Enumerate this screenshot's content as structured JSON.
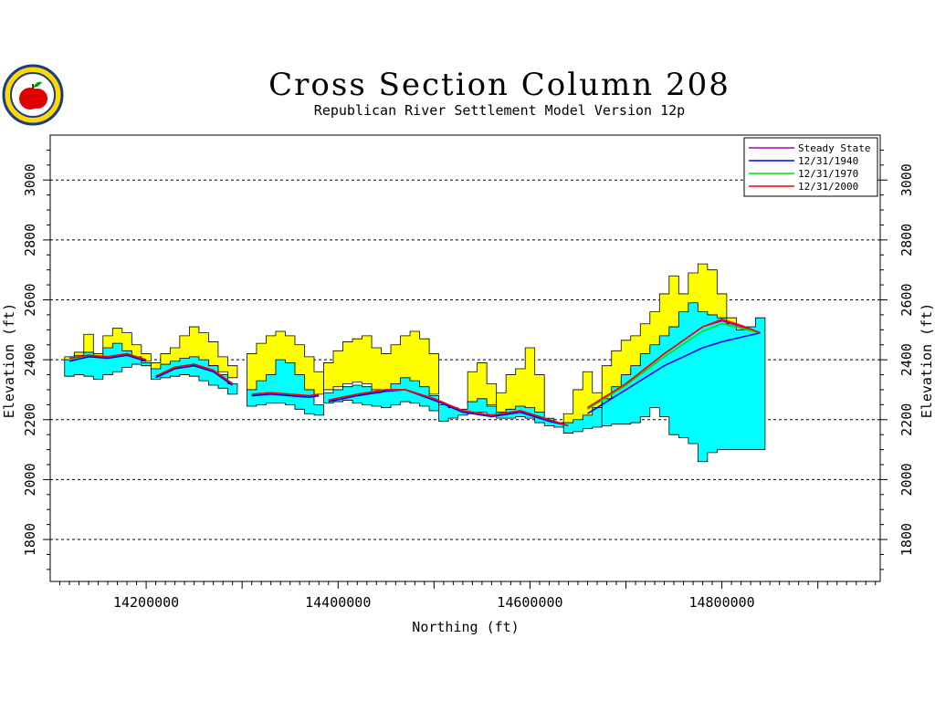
{
  "chart_data": {
    "type": "area",
    "title": "Cross Section Column 208",
    "subtitle": "Republican River Settlement Model Version 12p",
    "xlabel": "Northing (ft)",
    "ylabel": "Elevation (ft)",
    "xlim": [
      14100000,
      14965000
    ],
    "ylim": [
      1660000,
      3150000
    ],
    "y_scale_note": "",
    "xticks": [
      14200000,
      14400000,
      14600000,
      14800000
    ],
    "xtick_labels": [
      "14200000",
      "14400000",
      "14600000",
      "14800000"
    ],
    "yticks": [
      1800,
      2000,
      2200,
      2400,
      2600,
      2800,
      3000
    ],
    "ytick_labels": [
      "1800",
      "2000",
      "2200",
      "2400",
      "2600",
      "2800",
      "3000"
    ],
    "grid": "horizontal dashed",
    "legend_position": "top-right",
    "colors": {
      "yellow_layer": "#ffff00",
      "cyan_layer": "#00ffff",
      "steady_state": "#b000b0",
      "y1940": "#0000ff",
      "y1970": "#00e000",
      "y2000": "#ff0000"
    },
    "layers": [
      {
        "name": "",
        "color": "#ffff00",
        "segments": [
          {
            "x": [
              14120000,
              14130000,
              14140000,
              14150000,
              14160000,
              14170000,
              14180000,
              14190000,
              14200000
            ],
            "top": [
              2410,
              2425,
              2485,
              2420,
              2480,
              2505,
              2490,
              2450,
              2420
            ],
            "bottom": [
              2400,
              2410,
              2415,
              2405,
              2410,
              2420,
              2415,
              2405,
              2395
            ]
          },
          {
            "x": [
              14210000,
              14220000,
              14230000,
              14240000,
              14250000,
              14260000,
              14270000,
              14280000,
              14290000
            ],
            "top": [
              2390,
              2420,
              2440,
              2480,
              2510,
              2490,
              2460,
              2410,
              2380
            ],
            "bottom": [
              2365,
              2375,
              2385,
              2395,
              2400,
              2395,
              2380,
              2360,
              2340
            ]
          },
          {
            "x": [
              14310000,
              14320000,
              14330000,
              14340000,
              14350000,
              14360000,
              14370000,
              14380000
            ],
            "top": [
              2420,
              2455,
              2480,
              2495,
              2480,
              2450,
              2410,
              2360
            ],
            "bottom": [
              2290,
              2305,
              2315,
              2325,
              2325,
              2315,
              2300,
              2285
            ]
          },
          {
            "x": [
              14390000,
              14400000,
              14410000,
              14420000,
              14430000,
              14440000,
              14450000,
              14460000,
              14470000,
              14480000,
              14490000,
              14500000
            ],
            "top": [
              2390,
              2430,
              2460,
              2470,
              2480,
              2440,
              2420,
              2450,
              2480,
              2495,
              2470,
              2420
            ],
            "bottom": [
              2300,
              2310,
              2320,
              2325,
              2320,
              2300,
              2290,
              2295,
              2300,
              2305,
              2300,
              2285
            ]
          },
          {
            "x": [
              14540000,
              14550000,
              14560000
            ],
            "top": [
              2360,
              2390,
              2320
            ],
            "bottom": [
              2250,
              2260,
              2250
            ]
          },
          {
            "x": [
              14570000,
              14580000,
              14590000,
              14600000,
              14610000
            ],
            "top": [
              2290,
              2350,
              2370,
              2440,
              2350
            ],
            "bottom": [
              2225,
              2230,
              2235,
              2225,
              2210
            ]
          },
          {
            "x": [
              14640000,
              14650000,
              14660000,
              14670000
            ],
            "top": [
              2220,
              2300,
              2360,
              2290
            ],
            "bottom": [
              2185,
              2195,
              2205,
              2215
            ]
          },
          {
            "x": [
              14680000,
              14690000,
              14700000,
              14710000,
              14720000,
              14730000,
              14740000,
              14750000,
              14760000,
              14770000,
              14780000,
              14790000,
              14800000,
              14810000
            ],
            "top": [
              2380,
              2430,
              2465,
              2480,
              2520,
              2560,
              2620,
              2680,
              2620,
              2690,
              2720,
              2700,
              2620,
              2540
            ],
            "bottom": [
              2240,
              2290,
              2330,
              2370,
              2410,
              2440,
              2470,
              2490,
              2500,
              2510,
              2520,
              2530,
              2520,
              2500
            ]
          }
        ]
      },
      {
        "name": "",
        "color": "#00ffff",
        "segments": [
          {
            "x": [
              14120000,
              14130000,
              14140000,
              14150000,
              14160000,
              14170000,
              14180000,
              14190000,
              14200000
            ],
            "top": [
              2400,
              2415,
              2425,
              2410,
              2440,
              2455,
              2430,
              2410,
              2390
            ],
            "bottom": [
              2345,
              2350,
              2345,
              2335,
              2350,
              2360,
              2375,
              2385,
              2380
            ]
          },
          {
            "x": [
              14210000,
              14220000,
              14230000,
              14240000,
              14250000,
              14260000,
              14270000,
              14280000,
              14290000
            ],
            "top": [
              2370,
              2385,
              2395,
              2405,
              2410,
              2400,
              2380,
              2350,
              2320
            ],
            "bottom": [
              2335,
              2340,
              2345,
              2350,
              2345,
              2330,
              2315,
              2305,
              2285
            ]
          },
          {
            "x": [
              14310000,
              14320000,
              14330000,
              14340000,
              14350000,
              14360000,
              14370000,
              14380000
            ],
            "top": [
              2300,
              2330,
              2350,
              2400,
              2390,
              2350,
              2300,
              2250
            ],
            "bottom": [
              2245,
              2250,
              2255,
              2255,
              2250,
              2235,
              2220,
              2215
            ]
          },
          {
            "x": [
              14390000,
              14400000,
              14410000,
              14420000,
              14430000,
              14440000,
              14450000,
              14460000,
              14470000,
              14480000,
              14490000,
              14500000
            ],
            "top": [
              2290,
              2300,
              2310,
              2315,
              2310,
              2290,
              2300,
              2320,
              2340,
              2330,
              2310,
              2280
            ],
            "bottom": [
              2255,
              2260,
              2265,
              2255,
              2250,
              2245,
              2240,
              2250,
              2260,
              2255,
              2245,
              2230
            ]
          },
          {
            "x": [
              14510000,
              14520000,
              14530000,
              14540000,
              14550000,
              14560000
            ],
            "top": [
              2250,
              2240,
              2235,
              2260,
              2270,
              2245
            ],
            "bottom": [
              2195,
              2205,
              2215,
              2220,
              2225,
              2215
            ]
          },
          {
            "x": [
              14570000,
              14580000,
              14590000,
              14600000,
              14610000,
              14620000,
              14630000
            ],
            "top": [
              2225,
              2235,
              2245,
              2240,
              2225,
              2205,
              2190
            ],
            "bottom": [
              2205,
              2205,
              2210,
              2205,
              2190,
              2180,
              2175
            ]
          },
          {
            "x": [
              14640000,
              14650000,
              14660000,
              14670000
            ],
            "top": [
              2190,
              2200,
              2215,
              2240
            ],
            "bottom": [
              2155,
              2160,
              2170,
              2175
            ]
          },
          {
            "x": [
              14680000,
              14690000,
              14700000,
              14710000,
              14720000,
              14730000,
              14740000,
              14750000,
              14760000,
              14770000,
              14780000,
              14790000,
              14800000,
              14810000,
              14820000,
              14830000,
              14840000
            ],
            "top": [
              2270,
              2310,
              2350,
              2380,
              2420,
              2450,
              2480,
              2510,
              2560,
              2590,
              2560,
              2550,
              2540,
              2520,
              2500,
              2510,
              2540
            ],
            "bottom": [
              2180,
              2185,
              2185,
              2190,
              2210,
              2240,
              2210,
              2150,
              2140,
              2120,
              2060,
              2090,
              2100,
              2100,
              2100,
              2100,
              2100
            ]
          }
        ]
      }
    ],
    "series": [
      {
        "name": "Steady State",
        "color": "#b000b0",
        "segments": [
          {
            "x": [
              14120000,
              14140000,
              14160000,
              14180000,
              14200000
            ],
            "y": [
              2405,
              2415,
              2410,
              2420,
              2400
            ]
          },
          {
            "x": [
              14210000,
              14230000,
              14250000,
              14270000,
              14290000
            ],
            "y": [
              2345,
              2375,
              2385,
              2365,
              2320
            ]
          },
          {
            "x": [
              14310000,
              14330000,
              14350000,
              14370000,
              14380000
            ],
            "y": [
              2285,
              2290,
              2285,
              2280,
              2285
            ]
          },
          {
            "x": [
              14390000,
              14420000,
              14450000,
              14470000,
              14500000,
              14530000,
              14560000,
              14590000,
              14620000,
              14640000
            ],
            "y": [
              2265,
              2285,
              2300,
              2300,
              2270,
              2230,
              2215,
              2230,
              2200,
              2180
            ]
          },
          {
            "x": [
              14660000,
              14700000,
              14740000,
              14780000,
              14800000,
              14820000,
              14840000
            ],
            "y": [
              2240,
              2320,
              2420,
              2510,
              2530,
              2510,
              2490
            ]
          }
        ]
      },
      {
        "name": "12/31/1940",
        "color": "#0000ff",
        "segments": [
          {
            "x": [
              14120000,
              14140000,
              14160000,
              14180000,
              14200000
            ],
            "y": [
              2395,
              2410,
              2405,
              2415,
              2395
            ]
          },
          {
            "x": [
              14210000,
              14230000,
              14250000,
              14270000,
              14290000
            ],
            "y": [
              2340,
              2370,
              2380,
              2360,
              2315
            ]
          },
          {
            "x": [
              14310000,
              14330000,
              14350000,
              14370000,
              14380000
            ],
            "y": [
              2280,
              2285,
              2280,
              2275,
              2280
            ]
          },
          {
            "x": [
              14390000,
              14420000,
              14450000,
              14470000,
              14500000,
              14530000,
              14560000,
              14590000,
              14620000,
              14640000
            ],
            "y": [
              2260,
              2280,
              2295,
              2300,
              2265,
              2225,
              2210,
              2225,
              2195,
              2180
            ]
          },
          {
            "x": [
              14660000,
              14700000,
              14740000,
              14780000,
              14800000,
              14820000,
              14840000
            ],
            "y": [
              2220,
              2300,
              2380,
              2440,
              2460,
              2475,
              2490
            ]
          }
        ]
      },
      {
        "name": "12/31/1970",
        "color": "#00e000",
        "segments": [
          {
            "x": [
              14120000,
              14140000,
              14160000,
              14180000,
              14200000
            ],
            "y": [
              2400,
              2415,
              2410,
              2420,
              2400
            ]
          },
          {
            "x": [
              14210000,
              14230000,
              14250000,
              14270000,
              14290000
            ],
            "y": [
              2345,
              2375,
              2385,
              2365,
              2320
            ]
          },
          {
            "x": [
              14310000,
              14330000,
              14350000,
              14370000,
              14380000
            ],
            "y": [
              2285,
              2290,
              2285,
              2280,
              2285
            ]
          },
          {
            "x": [
              14390000,
              14420000,
              14450000,
              14470000,
              14500000,
              14530000,
              14560000,
              14590000,
              14620000,
              14640000
            ],
            "y": [
              2265,
              2285,
              2300,
              2300,
              2270,
              2230,
              2215,
              2230,
              2200,
              2180
            ]
          },
          {
            "x": [
              14660000,
              14700000,
              14740000,
              14780000,
              14800000,
              14820000,
              14840000
            ],
            "y": [
              2235,
              2315,
              2410,
              2495,
              2520,
              2505,
              2490
            ]
          }
        ]
      },
      {
        "name": "12/31/2000",
        "color": "#ff0000",
        "segments": [
          {
            "x": [
              14120000,
              14140000,
              14160000,
              14180000,
              14200000
            ],
            "y": [
              2405,
              2415,
              2410,
              2420,
              2400
            ]
          },
          {
            "x": [
              14210000,
              14230000,
              14250000,
              14270000,
              14290000
            ],
            "y": [
              2345,
              2375,
              2385,
              2365,
              2320
            ]
          },
          {
            "x": [
              14310000,
              14330000,
              14350000,
              14370000,
              14380000
            ],
            "y": [
              2285,
              2290,
              2285,
              2280,
              2285
            ]
          },
          {
            "x": [
              14390000,
              14420000,
              14450000,
              14470000,
              14500000,
              14530000,
              14560000,
              14590000,
              14620000,
              14640000
            ],
            "y": [
              2265,
              2285,
              2300,
              2300,
              2270,
              2230,
              2215,
              2230,
              2200,
              2180
            ]
          },
          {
            "x": [
              14660000,
              14700000,
              14740000,
              14780000,
              14800000,
              14820000,
              14840000
            ],
            "y": [
              2240,
              2320,
              2420,
              2510,
              2535,
              2515,
              2490
            ]
          }
        ]
      }
    ]
  }
}
